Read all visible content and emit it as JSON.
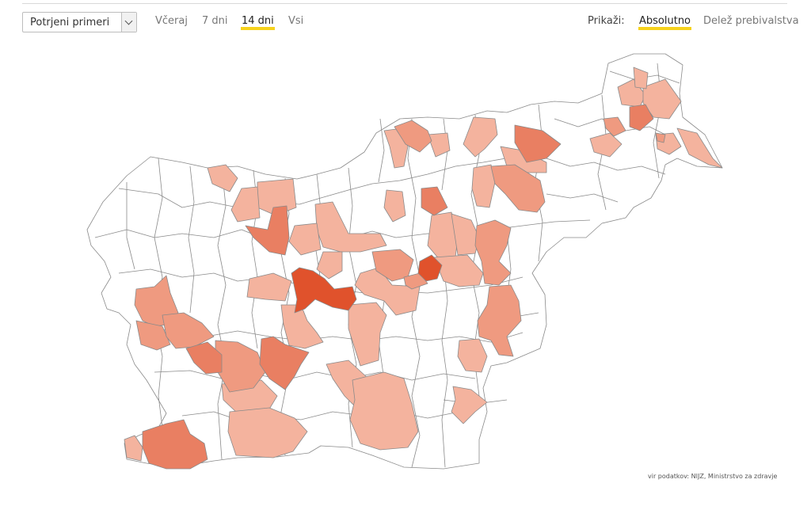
{
  "filters": {
    "dataset_select": {
      "value": "Potrjeni primeri"
    },
    "periods": [
      {
        "label": "Včeraj",
        "active": false
      },
      {
        "label": "7 dni",
        "active": false
      },
      {
        "label": "14 dni",
        "active": true
      },
      {
        "label": "Vsi",
        "active": false
      }
    ],
    "show_label": "Prikaži:",
    "modes": [
      {
        "label": "Absolutno",
        "active": true
      },
      {
        "label": "Delež prebivalstva",
        "active": false
      }
    ]
  },
  "colors": {
    "scale": [
      "#ffffff",
      "#f4b39e",
      "#ef9a80",
      "#e97f62",
      "#e0522c"
    ],
    "highlight": "#f6d21c"
  },
  "source": "vir podatkov: NIJZ, Ministrstvo za zdravje"
}
